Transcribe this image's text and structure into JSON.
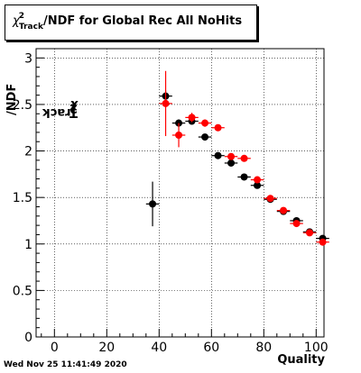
{
  "title": {
    "chi": "χ",
    "sup": "2",
    "sub": "Track",
    "rest": "/NDF for Global Rec All NoHits"
  },
  "footer": "Wed Nov 25 11:41:49 2020",
  "chart_data": {
    "type": "scatter",
    "xlabel": "Quality",
    "ylabel": "χ²Track/NDF",
    "xlim": [
      -7,
      103
    ],
    "ylim": [
      0,
      3.1
    ],
    "x_ticks": [
      0,
      20,
      40,
      60,
      80,
      100
    ],
    "y_ticks": [
      0,
      0.5,
      1,
      1.5,
      2,
      2.5,
      3
    ],
    "grid": true,
    "colors": {
      "series_black": "#000000",
      "series_red": "#ff0000"
    },
    "series": [
      {
        "color": "#000000",
        "points": [
          {
            "x": 37.5,
            "y": 1.43,
            "yerr": 0.24
          },
          {
            "x": 42.5,
            "y": 2.59,
            "yerr": 0.06
          },
          {
            "x": 47.5,
            "y": 2.3,
            "yerr": 0.04
          },
          {
            "x": 52.5,
            "y": 2.32,
            "yerr": 0.03
          },
          {
            "x": 57.5,
            "y": 2.15,
            "yerr": 0.03
          },
          {
            "x": 62.5,
            "y": 1.95,
            "yerr": 0.02
          },
          {
            "x": 67.5,
            "y": 1.87,
            "yerr": 0.02
          },
          {
            "x": 72.5,
            "y": 1.72,
            "yerr": 0.02
          },
          {
            "x": 77.5,
            "y": 1.63,
            "yerr": 0.02
          },
          {
            "x": 82.5,
            "y": 1.48,
            "yerr": 0.01
          },
          {
            "x": 87.5,
            "y": 1.35,
            "yerr": 0.01
          },
          {
            "x": 92.5,
            "y": 1.25,
            "yerr": 0.01
          },
          {
            "x": 97.5,
            "y": 1.13,
            "yerr": 0.01
          },
          {
            "x": 102.5,
            "y": 1.06,
            "yerr": 0.01
          }
        ]
      },
      {
        "color": "#ff0000",
        "points": [
          {
            "x": 42.5,
            "y": 2.51,
            "yerr": 0.35
          },
          {
            "x": 47.5,
            "y": 2.17,
            "yerr": 0.13
          },
          {
            "x": 52.5,
            "y": 2.36,
            "yerr": 0.05
          },
          {
            "x": 57.5,
            "y": 2.3,
            "yerr": 0.04
          },
          {
            "x": 62.5,
            "y": 2.25,
            "yerr": 0.03
          },
          {
            "x": 67.5,
            "y": 1.94,
            "yerr": 0.02
          },
          {
            "x": 72.5,
            "y": 1.92,
            "yerr": 0.02
          },
          {
            "x": 77.5,
            "y": 1.69,
            "yerr": 0.02
          },
          {
            "x": 82.5,
            "y": 1.49,
            "yerr": 0.01
          },
          {
            "x": 87.5,
            "y": 1.36,
            "yerr": 0.01
          },
          {
            "x": 92.5,
            "y": 1.22,
            "yerr": 0.01
          },
          {
            "x": 97.5,
            "y": 1.12,
            "yerr": 0.01
          },
          {
            "x": 102.5,
            "y": 1.02,
            "yerr": 0.01
          }
        ]
      }
    ]
  }
}
